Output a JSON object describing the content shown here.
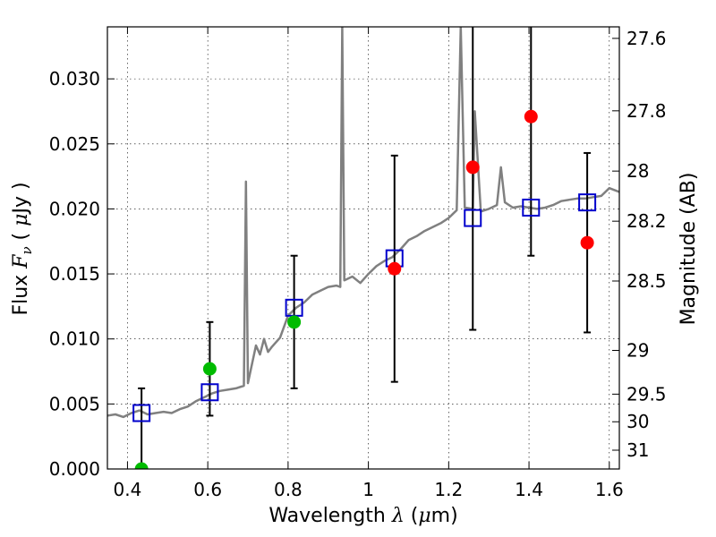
{
  "chart_data": {
    "type": "scatter",
    "xlabel": "Wavelength  λ (μm)",
    "ylabel": "Flux  F_ν  ( μJy )",
    "ylabel_parts": {
      "pre": "Flux  ",
      "sym": "F",
      "sub": "ν",
      "mid": "  ( ",
      "mu": "μ",
      "post": "Jy )"
    },
    "xlabel_parts": {
      "pre": "Wavelength  ",
      "sym": "λ",
      "mid": " (",
      "mu": "μ",
      "post": "m)"
    },
    "y2label": "Magnitude (AB)",
    "xlim": [
      0.35,
      1.625
    ],
    "ylim": [
      0.0,
      0.034
    ],
    "grid": true,
    "x_ticks": [
      {
        "v": 0.4,
        "label": "0.4"
      },
      {
        "v": 0.6,
        "label": "0.6"
      },
      {
        "v": 0.8,
        "label": "0.8"
      },
      {
        "v": 1.0,
        "label": "1"
      },
      {
        "v": 1.2,
        "label": "1.2"
      },
      {
        "v": 1.4,
        "label": "1.4"
      },
      {
        "v": 1.6,
        "label": "1.6"
      }
    ],
    "y_ticks": [
      {
        "v": 0.0,
        "label": "0.000"
      },
      {
        "v": 0.005,
        "label": "0.005"
      },
      {
        "v": 0.01,
        "label": "0.010"
      },
      {
        "v": 0.015,
        "label": "0.015"
      },
      {
        "v": 0.02,
        "label": "0.020"
      },
      {
        "v": 0.025,
        "label": "0.025"
      },
      {
        "v": 0.03,
        "label": "0.030"
      }
    ],
    "mag_ticks": [
      "27.6",
      "27.8",
      "28",
      "28.2",
      "28.5",
      "29",
      "29.5",
      "30",
      "31"
    ],
    "colors": {
      "sed": "#808080",
      "model_points": "#0000cc",
      "red_points": "#ff0000",
      "green_points": "#00bb00",
      "errorbars": "#000000"
    },
    "series": [
      {
        "kind": "sed",
        "points": [
          [
            0.35,
            0.0041
          ],
          [
            0.37,
            0.0042
          ],
          [
            0.39,
            0.004
          ],
          [
            0.41,
            0.0043
          ],
          [
            0.43,
            0.0045
          ],
          [
            0.45,
            0.0042
          ],
          [
            0.47,
            0.0043
          ],
          [
            0.49,
            0.0044
          ],
          [
            0.51,
            0.0043
          ],
          [
            0.53,
            0.0046
          ],
          [
            0.55,
            0.0048
          ],
          [
            0.57,
            0.0052
          ],
          [
            0.59,
            0.0055
          ],
          [
            0.61,
            0.0058
          ],
          [
            0.63,
            0.006
          ],
          [
            0.65,
            0.0061
          ],
          [
            0.67,
            0.0062
          ],
          [
            0.69,
            0.0064
          ],
          [
            0.695,
            0.0221
          ],
          [
            0.7,
            0.0066
          ],
          [
            0.72,
            0.0095
          ],
          [
            0.73,
            0.0088
          ],
          [
            0.74,
            0.01
          ],
          [
            0.75,
            0.009
          ],
          [
            0.76,
            0.0094
          ],
          [
            0.78,
            0.0101
          ],
          [
            0.8,
            0.0118
          ],
          [
            0.82,
            0.0124
          ],
          [
            0.84,
            0.0128
          ],
          [
            0.86,
            0.0134
          ],
          [
            0.88,
            0.0137
          ],
          [
            0.9,
            0.014
          ],
          [
            0.92,
            0.0141
          ],
          [
            0.93,
            0.014
          ],
          [
            0.935,
            0.034
          ],
          [
            0.94,
            0.0145
          ],
          [
            0.96,
            0.0148
          ],
          [
            0.98,
            0.0143
          ],
          [
            1.0,
            0.015
          ],
          [
            1.02,
            0.0156
          ],
          [
            1.04,
            0.016
          ],
          [
            1.06,
            0.0163
          ],
          [
            1.08,
            0.0169
          ],
          [
            1.1,
            0.0176
          ],
          [
            1.12,
            0.0179
          ],
          [
            1.14,
            0.0183
          ],
          [
            1.16,
            0.0186
          ],
          [
            1.18,
            0.0189
          ],
          [
            1.2,
            0.0193
          ],
          [
            1.21,
            0.0196
          ],
          [
            1.22,
            0.0199
          ],
          [
            1.23,
            0.034
          ],
          [
            1.24,
            0.0201
          ],
          [
            1.26,
            0.02
          ],
          [
            1.265,
            0.0275
          ],
          [
            1.28,
            0.0198
          ],
          [
            1.3,
            0.02
          ],
          [
            1.32,
            0.0203
          ],
          [
            1.33,
            0.0232
          ],
          [
            1.34,
            0.0205
          ],
          [
            1.36,
            0.0201
          ],
          [
            1.38,
            0.0202
          ],
          [
            1.4,
            0.0201
          ],
          [
            1.42,
            0.02
          ],
          [
            1.44,
            0.0201
          ],
          [
            1.46,
            0.0203
          ],
          [
            1.48,
            0.0206
          ],
          [
            1.5,
            0.0207
          ],
          [
            1.52,
            0.0208
          ],
          [
            1.54,
            0.0208
          ],
          [
            1.56,
            0.0209
          ],
          [
            1.58,
            0.021
          ],
          [
            1.6,
            0.0216
          ],
          [
            1.625,
            0.0213
          ]
        ]
      },
      {
        "kind": "model",
        "points": [
          {
            "x": 0.435,
            "y": 0.0043
          },
          {
            "x": 0.605,
            "y": 0.0059
          },
          {
            "x": 0.815,
            "y": 0.0124
          },
          {
            "x": 1.065,
            "y": 0.0162
          },
          {
            "x": 1.26,
            "y": 0.0193
          },
          {
            "x": 1.405,
            "y": 0.0201
          },
          {
            "x": 1.545,
            "y": 0.0205
          }
        ]
      },
      {
        "kind": "detections",
        "points": [
          {
            "x": 0.605,
            "y": 0.0077,
            "yerr": 0.0036,
            "color": "green"
          },
          {
            "x": 0.815,
            "y": 0.0113,
            "yerr": 0.0051,
            "color": "green"
          },
          {
            "x": 1.065,
            "y": 0.0154,
            "yerr": 0.0087,
            "color": "red"
          },
          {
            "x": 1.26,
            "y": 0.0232,
            "yerr": 0.0125,
            "color": "red"
          },
          {
            "x": 1.405,
            "y": 0.0271,
            "yerr": 0.0107,
            "color": "red"
          },
          {
            "x": 1.545,
            "y": 0.0174,
            "yerr": 0.0069,
            "color": "red"
          }
        ]
      },
      {
        "kind": "detection-low",
        "points": [
          {
            "x": 0.435,
            "y": 0.0,
            "yerr": 0.0062,
            "color": "green"
          }
        ]
      }
    ]
  }
}
